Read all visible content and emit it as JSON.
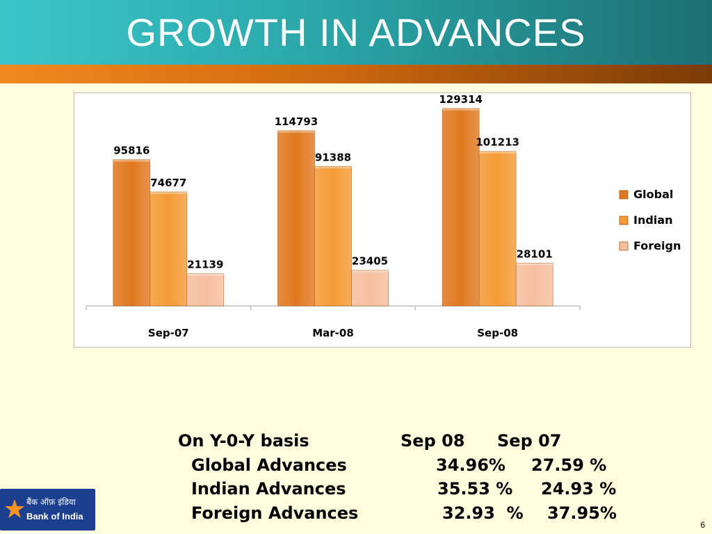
{
  "title": "GROWTH IN ADVANCES",
  "chart_data": {
    "type": "bar",
    "categories": [
      "Sep-07",
      "Mar-08",
      "Sep-08"
    ],
    "series": [
      {
        "name": "Global",
        "values": [
          95816,
          114793,
          129314
        ],
        "color": "#e0781f"
      },
      {
        "name": "Indian",
        "values": [
          74677,
          91388,
          101213
        ],
        "color": "#f59a35"
      },
      {
        "name": "Foreign",
        "values": [
          21139,
          23405,
          28101
        ],
        "color": "#f6bfa0"
      }
    ],
    "ylim": [
      0,
      129314
    ],
    "legend": "right",
    "grid": false
  },
  "yoy": {
    "heading": "On Y-0-Y basis",
    "col1": "Sep 08",
    "col2": "Sep 07",
    "rows": [
      {
        "label": "Global Advances",
        "v1": "34.96%",
        "v2": "27.59 %"
      },
      {
        "label": "Indian Advances",
        "v1": "35.53 %",
        "v2": "24.93 %"
      },
      {
        "label": "Foreign Advances",
        "v1": "32.93  %",
        "v2": "37.95%"
      }
    ]
  },
  "logo": {
    "hindi": "बैंक ऑफ़ इंडिया",
    "name": "Bank of India"
  },
  "page_number": "6"
}
